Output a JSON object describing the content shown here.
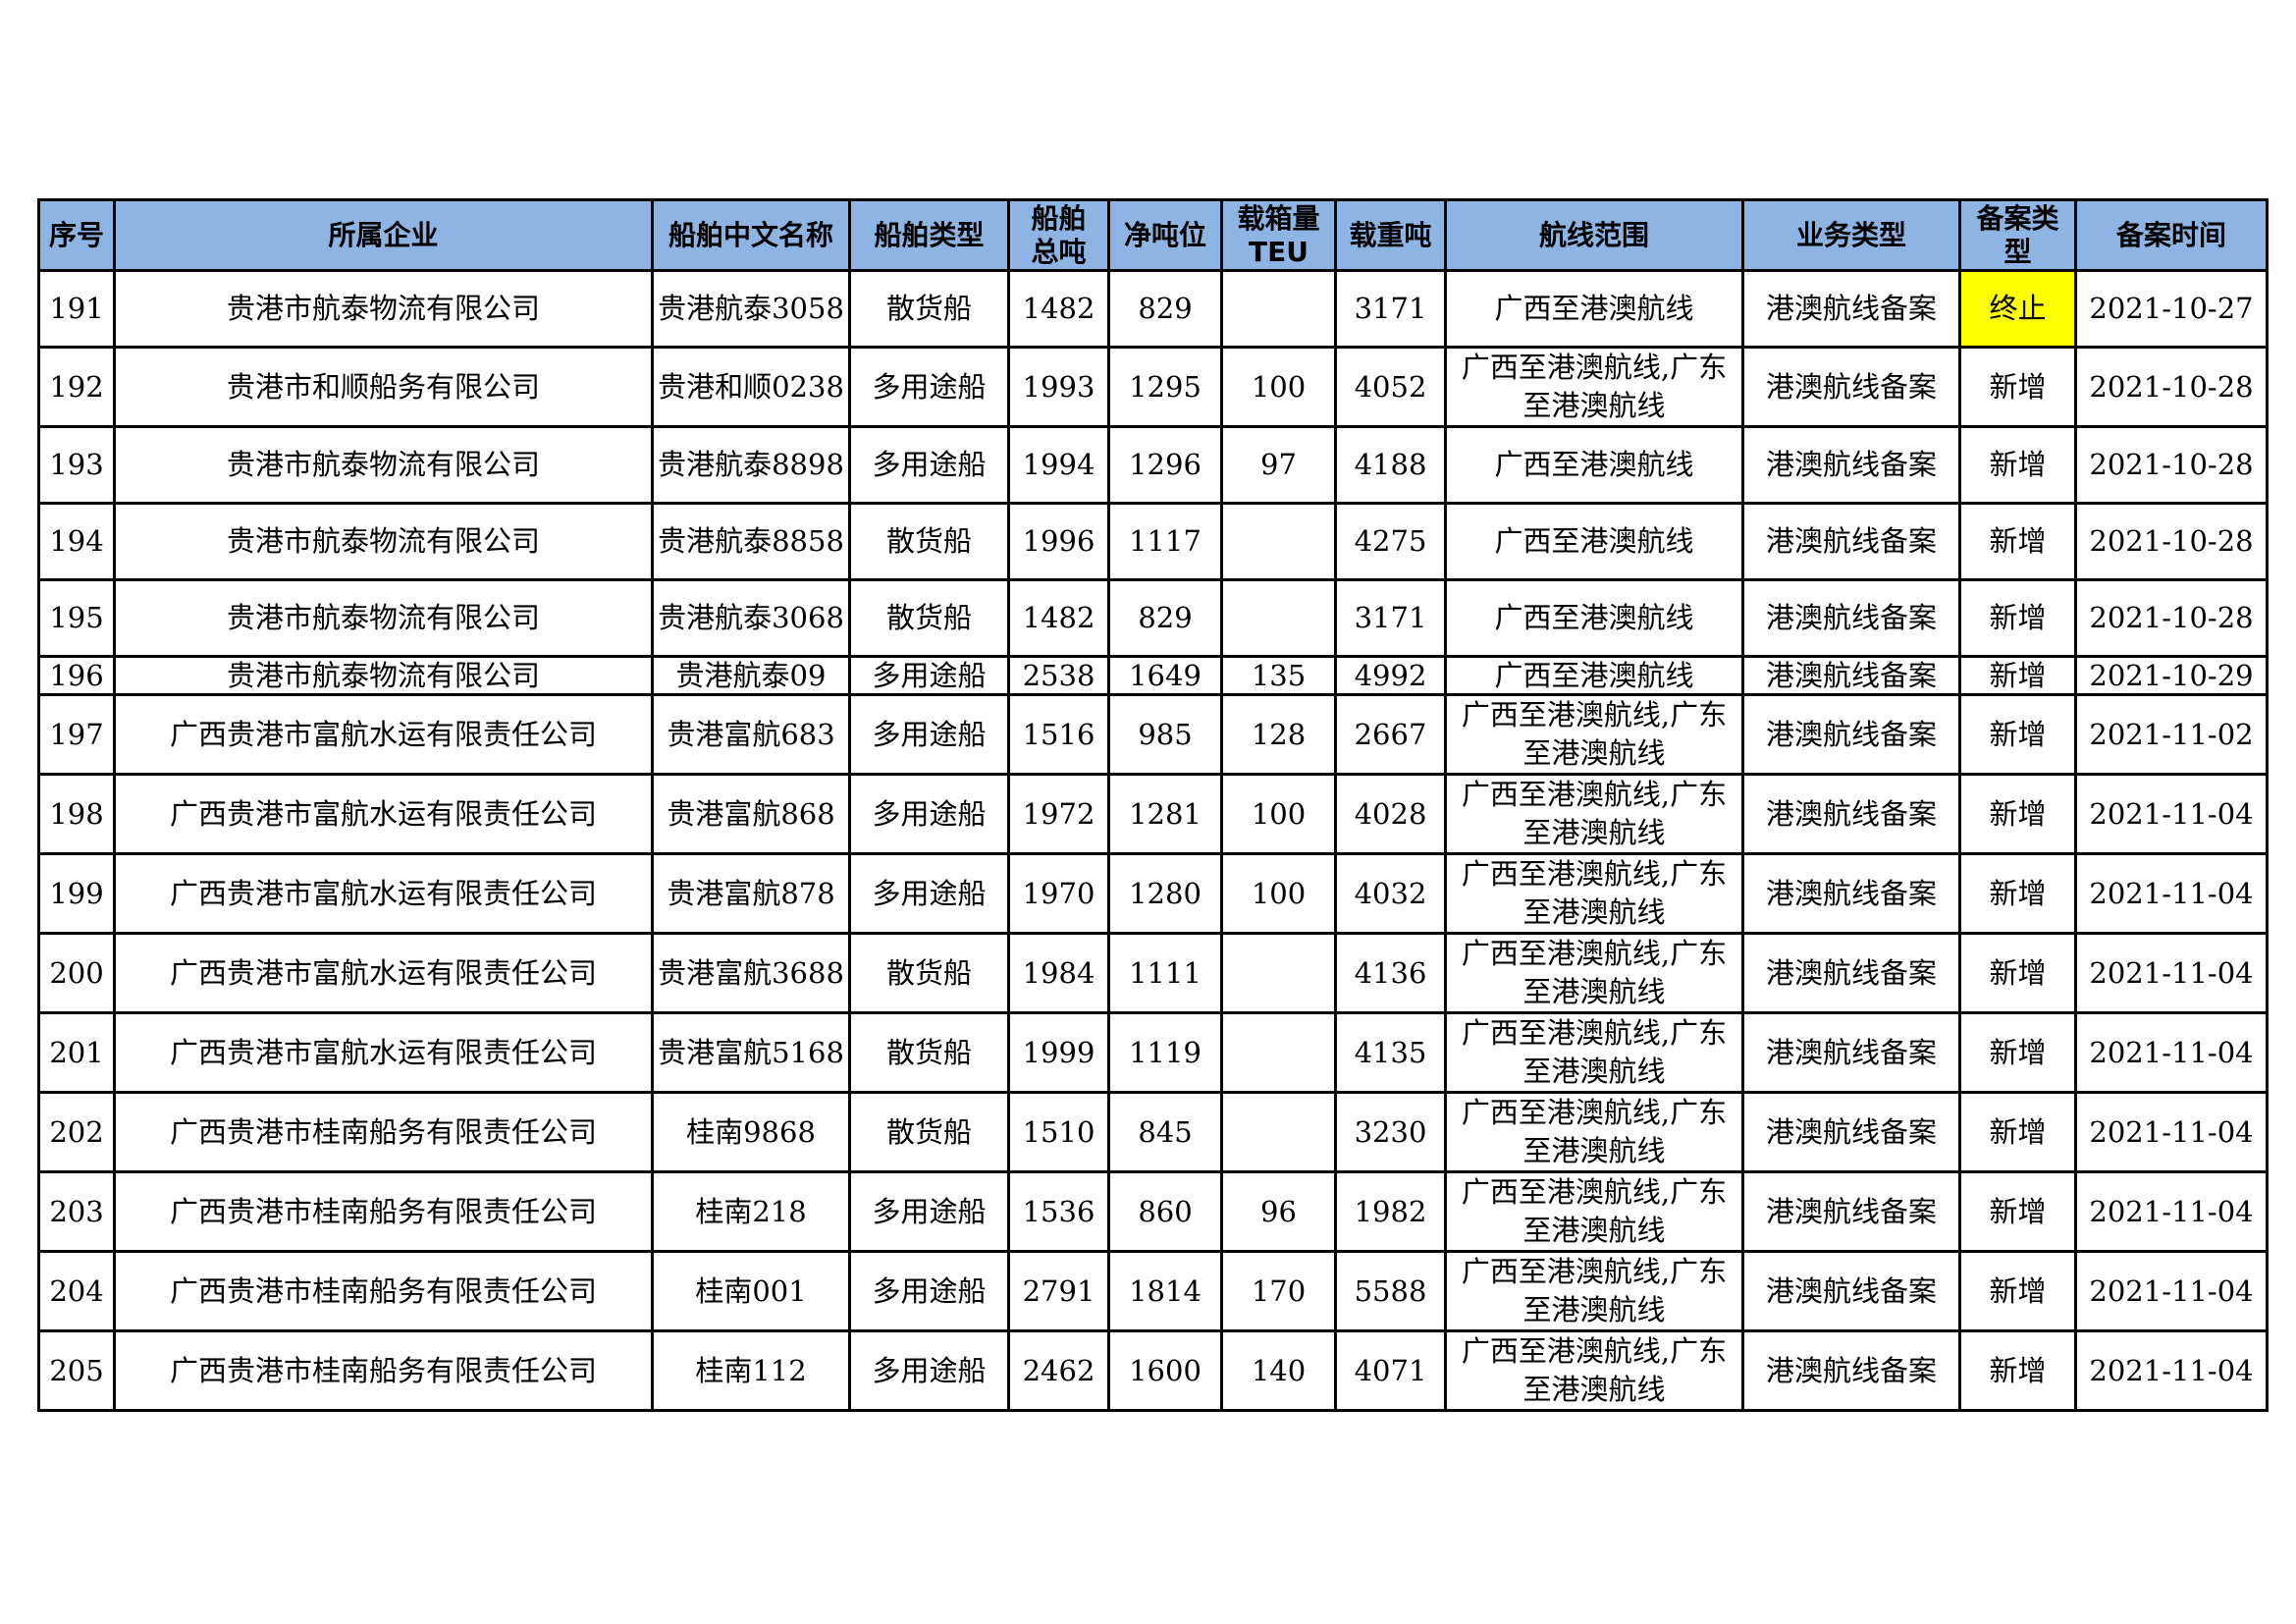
{
  "table": {
    "headers": [
      "序号",
      "所属企业",
      "船舶中文名称",
      "船舶类型",
      "船舶总吨",
      "净吨位",
      "载箱量TEU",
      "载重吨",
      "航线范围",
      "业务类型",
      "备案类型",
      "备案时间"
    ],
    "highlight_color": "#ffff00",
    "header_color": "#8db4e2",
    "rows": [
      [
        "191",
        "贵港市航泰物流有限公司",
        "贵港航泰3058",
        "散货船",
        "1482",
        "829",
        "",
        "3171",
        "广西至港澳航线",
        "港澳航线备案",
        "终止",
        "2021-10-27"
      ],
      [
        "192",
        "贵港市和顺船务有限公司",
        "贵港和顺0238",
        "多用途船",
        "1993",
        "1295",
        "100",
        "4052",
        "广西至港澳航线,广东至港澳航线",
        "港澳航线备案",
        "新增",
        "2021-10-28"
      ],
      [
        "193",
        "贵港市航泰物流有限公司",
        "贵港航泰8898",
        "多用途船",
        "1994",
        "1296",
        "97",
        "4188",
        "广西至港澳航线",
        "港澳航线备案",
        "新增",
        "2021-10-28"
      ],
      [
        "194",
        "贵港市航泰物流有限公司",
        "贵港航泰8858",
        "散货船",
        "1996",
        "1117",
        "",
        "4275",
        "广西至港澳航线",
        "港澳航线备案",
        "新增",
        "2021-10-28"
      ],
      [
        "195",
        "贵港市航泰物流有限公司",
        "贵港航泰3068",
        "散货船",
        "1482",
        "829",
        "",
        "3171",
        "广西至港澳航线",
        "港澳航线备案",
        "新增",
        "2021-10-28"
      ],
      [
        "196",
        "贵港市航泰物流有限公司",
        "贵港航泰09",
        "多用途船",
        "2538",
        "1649",
        "135",
        "4992",
        "广西至港澳航线",
        "港澳航线备案",
        "新增",
        "2021-10-29"
      ],
      [
        "197",
        "广西贵港市富航水运有限责任公司",
        "贵港富航683",
        "多用途船",
        "1516",
        "985",
        "128",
        "2667",
        "广西至港澳航线,广东至港澳航线",
        "港澳航线备案",
        "新增",
        "2021-11-02"
      ],
      [
        "198",
        "广西贵港市富航水运有限责任公司",
        "贵港富航868",
        "多用途船",
        "1972",
        "1281",
        "100",
        "4028",
        "广西至港澳航线,广东至港澳航线",
        "港澳航线备案",
        "新增",
        "2021-11-04"
      ],
      [
        "199",
        "广西贵港市富航水运有限责任公司",
        "贵港富航878",
        "多用途船",
        "1970",
        "1280",
        "100",
        "4032",
        "广西至港澳航线,广东至港澳航线",
        "港澳航线备案",
        "新增",
        "2021-11-04"
      ],
      [
        "200",
        "广西贵港市富航水运有限责任公司",
        "贵港富航3688",
        "散货船",
        "1984",
        "1111",
        "",
        "4136",
        "广西至港澳航线,广东至港澳航线",
        "港澳航线备案",
        "新增",
        "2021-11-04"
      ],
      [
        "201",
        "广西贵港市富航水运有限责任公司",
        "贵港富航5168",
        "散货船",
        "1999",
        "1119",
        "",
        "4135",
        "广西至港澳航线,广东至港澳航线",
        "港澳航线备案",
        "新增",
        "2021-11-04"
      ],
      [
        "202",
        "广西贵港市桂南船务有限责任公司",
        "桂南9868",
        "散货船",
        "1510",
        "845",
        "",
        "3230",
        "广西至港澳航线,广东至港澳航线",
        "港澳航线备案",
        "新增",
        "2021-11-04"
      ],
      [
        "203",
        "广西贵港市桂南船务有限责任公司",
        "桂南218",
        "多用途船",
        "1536",
        "860",
        "96",
        "1982",
        "广西至港澳航线,广东至港澳航线",
        "港澳航线备案",
        "新增",
        "2021-11-04"
      ],
      [
        "204",
        "广西贵港市桂南船务有限责任公司",
        "桂南001",
        "多用途船",
        "2791",
        "1814",
        "170",
        "5588",
        "广西至港澳航线,广东至港澳航线",
        "港澳航线备案",
        "新增",
        "2021-11-04"
      ],
      [
        "205",
        "广西贵港市桂南船务有限责任公司",
        "桂南112",
        "多用途船",
        "2462",
        "1600",
        "140",
        "4071",
        "广西至港澳航线,广东至港澳航线",
        "港澳航线备案",
        "新增",
        "2021-11-04"
      ]
    ]
  }
}
